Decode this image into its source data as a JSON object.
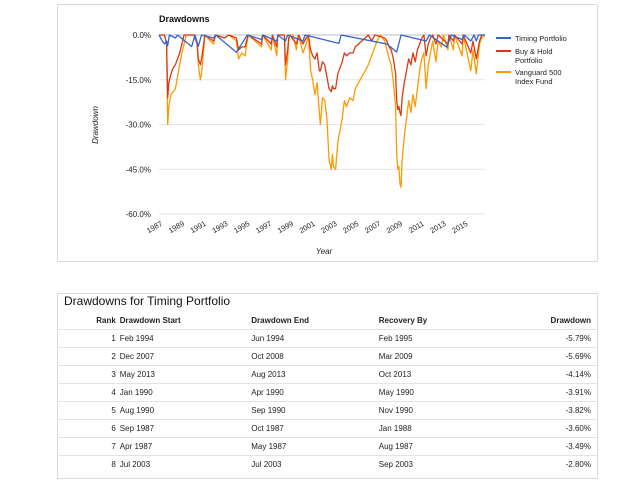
{
  "chart_data": {
    "type": "line",
    "title": "Drawdowns",
    "xlabel": "Year",
    "ylabel": "Drawdown",
    "xlim": [
      1987,
      2016.9
    ],
    "ylim": [
      -60,
      0
    ],
    "x_ticks": [
      "1987",
      "1989",
      "1991",
      "1993",
      "1995",
      "1997",
      "1999",
      "2001",
      "2003",
      "2005",
      "2007",
      "2009",
      "2011",
      "2013",
      "2015"
    ],
    "y_ticks": [
      "0.0%",
      "-15.0%",
      "-30.0%",
      "-45.0%",
      "-60.0%"
    ],
    "legend_position": "right",
    "grid": "horizontal",
    "series": [
      {
        "name": "Vanguard 500 Index Fund",
        "color": "#ff9900",
        "points": [
          [
            1987.0,
            0
          ],
          [
            1987.5,
            0
          ],
          [
            1987.7,
            -3
          ],
          [
            1987.8,
            -30
          ],
          [
            1987.9,
            -24
          ],
          [
            1988.1,
            -20
          ],
          [
            1988.3,
            -19
          ],
          [
            1988.5,
            -18
          ],
          [
            1988.7,
            -14
          ],
          [
            1988.9,
            -10
          ],
          [
            1989.1,
            -6
          ],
          [
            1989.3,
            -3
          ],
          [
            1989.5,
            0
          ],
          [
            1990.2,
            0
          ],
          [
            1990.5,
            -3
          ],
          [
            1990.6,
            -10
          ],
          [
            1990.8,
            -15
          ],
          [
            1990.9,
            -13
          ],
          [
            1991.1,
            -5
          ],
          [
            1991.2,
            0
          ],
          [
            1992.0,
            -3
          ],
          [
            1992.2,
            0
          ],
          [
            1993.0,
            -1
          ],
          [
            1993.4,
            0
          ],
          [
            1994.1,
            -2
          ],
          [
            1994.3,
            -8
          ],
          [
            1994.6,
            -6
          ],
          [
            1994.9,
            -7
          ],
          [
            1995.1,
            -2
          ],
          [
            1995.2,
            0
          ],
          [
            1996.4,
            -4
          ],
          [
            1996.5,
            0
          ],
          [
            1997.3,
            -5
          ],
          [
            1997.4,
            0
          ],
          [
            1997.8,
            -7
          ],
          [
            1997.9,
            0
          ],
          [
            1998.5,
            0
          ],
          [
            1998.6,
            -15
          ],
          [
            1998.8,
            -8
          ],
          [
            1998.9,
            -2
          ],
          [
            1999.0,
            0
          ],
          [
            1999.3,
            0
          ],
          [
            1999.6,
            -5
          ],
          [
            1999.8,
            0
          ],
          [
            2000.2,
            -6
          ],
          [
            2000.5,
            -3
          ],
          [
            2000.7,
            0
          ],
          [
            2000.9,
            -12
          ],
          [
            2001.1,
            -15
          ],
          [
            2001.3,
            -20
          ],
          [
            2001.5,
            -16
          ],
          [
            2001.7,
            -26
          ],
          [
            2001.8,
            -30
          ],
          [
            2002.0,
            -21
          ],
          [
            2002.2,
            -22
          ],
          [
            2002.4,
            -28
          ],
          [
            2002.6,
            -42
          ],
          [
            2002.8,
            -45
          ],
          [
            2002.9,
            -40
          ],
          [
            2003.0,
            -44
          ],
          [
            2003.2,
            -45
          ],
          [
            2003.4,
            -36
          ],
          [
            2003.6,
            -32
          ],
          [
            2003.8,
            -28
          ],
          [
            2004.0,
            -22
          ],
          [
            2004.2,
            -24
          ],
          [
            2004.5,
            -21
          ],
          [
            2004.8,
            -22
          ],
          [
            2005.0,
            -18
          ],
          [
            2005.3,
            -16
          ],
          [
            2005.6,
            -14
          ],
          [
            2005.9,
            -12
          ],
          [
            2006.2,
            -10
          ],
          [
            2006.5,
            -7
          ],
          [
            2006.8,
            -4
          ],
          [
            2007.0,
            -2
          ],
          [
            2007.3,
            0
          ],
          [
            2007.7,
            -2
          ],
          [
            2007.9,
            -5
          ],
          [
            2008.1,
            -8
          ],
          [
            2008.3,
            -10
          ],
          [
            2008.5,
            -16
          ],
          [
            2008.7,
            -24
          ],
          [
            2008.8,
            -40
          ],
          [
            2008.9,
            -45
          ],
          [
            2009.0,
            -44
          ],
          [
            2009.1,
            -50
          ],
          [
            2009.2,
            -51
          ],
          [
            2009.3,
            -42
          ],
          [
            2009.5,
            -34
          ],
          [
            2009.7,
            -28
          ],
          [
            2009.9,
            -22
          ],
          [
            2010.1,
            -26
          ],
          [
            2010.3,
            -20
          ],
          [
            2010.5,
            -24
          ],
          [
            2010.7,
            -18
          ],
          [
            2010.9,
            -12
          ],
          [
            2011.1,
            -8
          ],
          [
            2011.3,
            -6
          ],
          [
            2011.5,
            -18
          ],
          [
            2011.7,
            -10
          ],
          [
            2011.9,
            -6
          ],
          [
            2012.1,
            -2
          ],
          [
            2012.4,
            -9
          ],
          [
            2012.6,
            -2
          ],
          [
            2012.9,
            -4
          ],
          [
            2013.1,
            0
          ],
          [
            2013.5,
            -5
          ],
          [
            2013.6,
            0
          ],
          [
            2014.0,
            -5
          ],
          [
            2014.1,
            0
          ],
          [
            2014.8,
            -7
          ],
          [
            2014.9,
            0
          ],
          [
            2015.6,
            -12
          ],
          [
            2015.8,
            -5
          ],
          [
            2016.1,
            -13
          ],
          [
            2016.4,
            -3
          ],
          [
            2016.6,
            -1
          ],
          [
            2016.9,
            0
          ]
        ]
      },
      {
        "name": "Buy & Hold Portfolio",
        "color": "#dc3912",
        "points": [
          [
            1987.0,
            0
          ],
          [
            1987.5,
            0
          ],
          [
            1987.7,
            -3
          ],
          [
            1987.8,
            -21
          ],
          [
            1987.9,
            -16
          ],
          [
            1988.1,
            -13
          ],
          [
            1988.3,
            -11
          ],
          [
            1988.5,
            -10
          ],
          [
            1988.7,
            -8
          ],
          [
            1988.9,
            -6
          ],
          [
            1989.1,
            -3
          ],
          [
            1989.3,
            0
          ],
          [
            1990.2,
            0
          ],
          [
            1990.5,
            -3
          ],
          [
            1990.6,
            -8
          ],
          [
            1990.8,
            -10
          ],
          [
            1990.9,
            -8
          ],
          [
            1991.1,
            -3
          ],
          [
            1991.2,
            0
          ],
          [
            1992.0,
            -2
          ],
          [
            1992.2,
            0
          ],
          [
            1993.0,
            -1
          ],
          [
            1993.4,
            0
          ],
          [
            1994.1,
            -1
          ],
          [
            1994.3,
            -5
          ],
          [
            1994.6,
            -4
          ],
          [
            1994.9,
            -4
          ],
          [
            1995.1,
            -1
          ],
          [
            1995.2,
            0
          ],
          [
            1996.4,
            -3
          ],
          [
            1996.5,
            0
          ],
          [
            1997.3,
            -3
          ],
          [
            1997.4,
            0
          ],
          [
            1997.8,
            -4
          ],
          [
            1997.9,
            0
          ],
          [
            1998.5,
            0
          ],
          [
            1998.6,
            -10
          ],
          [
            1998.8,
            -5
          ],
          [
            1998.9,
            -1
          ],
          [
            1999.0,
            0
          ],
          [
            1999.6,
            -3
          ],
          [
            1999.8,
            0
          ],
          [
            2000.2,
            -3
          ],
          [
            2000.5,
            -1
          ],
          [
            2000.7,
            0
          ],
          [
            2000.9,
            -5
          ],
          [
            2001.1,
            -7
          ],
          [
            2001.3,
            -8
          ],
          [
            2001.5,
            -6
          ],
          [
            2001.7,
            -12
          ],
          [
            2001.8,
            -12
          ],
          [
            2002.0,
            -9
          ],
          [
            2002.2,
            -10
          ],
          [
            2002.4,
            -14
          ],
          [
            2002.6,
            -18
          ],
          [
            2002.8,
            -19
          ],
          [
            2002.9,
            -17
          ],
          [
            2003.0,
            -18
          ],
          [
            2003.2,
            -18
          ],
          [
            2003.4,
            -13
          ],
          [
            2003.6,
            -11
          ],
          [
            2003.8,
            -9
          ],
          [
            2004.0,
            -6
          ],
          [
            2004.2,
            -7
          ],
          [
            2004.5,
            -6
          ],
          [
            2004.8,
            -6
          ],
          [
            2005.0,
            -4
          ],
          [
            2005.3,
            -3
          ],
          [
            2005.6,
            -2
          ],
          [
            2005.9,
            -1
          ],
          [
            2006.2,
            0
          ],
          [
            2006.5,
            -2
          ],
          [
            2006.8,
            0
          ],
          [
            2007.7,
            -1
          ],
          [
            2007.9,
            -2
          ],
          [
            2008.1,
            -4
          ],
          [
            2008.3,
            -5
          ],
          [
            2008.5,
            -8
          ],
          [
            2008.7,
            -13
          ],
          [
            2008.8,
            -22
          ],
          [
            2008.9,
            -25
          ],
          [
            2009.0,
            -24
          ],
          [
            2009.1,
            -26
          ],
          [
            2009.2,
            -27
          ],
          [
            2009.3,
            -21
          ],
          [
            2009.5,
            -16
          ],
          [
            2009.7,
            -12
          ],
          [
            2009.9,
            -8
          ],
          [
            2010.1,
            -10
          ],
          [
            2010.3,
            -6
          ],
          [
            2010.5,
            -9
          ],
          [
            2010.7,
            -5
          ],
          [
            2010.9,
            -3
          ],
          [
            2011.1,
            -1
          ],
          [
            2011.3,
            0
          ],
          [
            2011.5,
            -7
          ],
          [
            2011.7,
            -3
          ],
          [
            2011.9,
            -1
          ],
          [
            2012.1,
            0
          ],
          [
            2012.4,
            -3
          ],
          [
            2012.6,
            0
          ],
          [
            2013.5,
            -3
          ],
          [
            2013.6,
            0
          ],
          [
            2014.0,
            -2
          ],
          [
            2014.1,
            0
          ],
          [
            2014.8,
            -3
          ],
          [
            2014.9,
            0
          ],
          [
            2015.6,
            -6
          ],
          [
            2015.8,
            -2
          ],
          [
            2016.1,
            -8
          ],
          [
            2016.4,
            -2
          ],
          [
            2016.6,
            0
          ],
          [
            2016.9,
            0
          ]
        ]
      },
      {
        "name": "Timing Portfolio",
        "color": "#3366cc",
        "points": [
          [
            1987.0,
            0
          ],
          [
            1987.3,
            -2
          ],
          [
            1987.5,
            -3
          ],
          [
            1987.7,
            -2
          ],
          [
            1987.8,
            -3.6
          ],
          [
            1987.95,
            0
          ],
          [
            1988.5,
            -1
          ],
          [
            1988.7,
            0
          ],
          [
            1990.0,
            -3.9
          ],
          [
            1990.3,
            0
          ],
          [
            1990.6,
            -3.8
          ],
          [
            1990.9,
            0
          ],
          [
            1992.0,
            -1
          ],
          [
            1992.2,
            0
          ],
          [
            1994.1,
            -5.8
          ],
          [
            1995.1,
            0
          ],
          [
            1996.4,
            -1.5
          ],
          [
            1996.5,
            0
          ],
          [
            1997.8,
            -2
          ],
          [
            1997.9,
            0
          ],
          [
            1998.6,
            -2
          ],
          [
            1998.8,
            0
          ],
          [
            2000.2,
            -2
          ],
          [
            2000.4,
            0
          ],
          [
            2003.5,
            -2.8
          ],
          [
            2003.7,
            0
          ],
          [
            2007.9,
            -3
          ],
          [
            2008.8,
            -5.7
          ],
          [
            2009.2,
            0
          ],
          [
            2011.5,
            -2
          ],
          [
            2011.8,
            0
          ],
          [
            2013.4,
            -4.1
          ],
          [
            2013.8,
            0
          ],
          [
            2014.8,
            -1.5
          ],
          [
            2015.0,
            0
          ],
          [
            2015.6,
            -2
          ],
          [
            2015.9,
            0
          ],
          [
            2016.1,
            -2
          ],
          [
            2016.3,
            0
          ],
          [
            2016.9,
            0
          ]
        ]
      }
    ]
  },
  "legend": {
    "timing": [
      "Timing Portfolio"
    ],
    "buyhold": [
      "Buy & Hold",
      "Portfolio"
    ],
    "vanguard": [
      "Vanguard 500",
      "Index Fund"
    ]
  },
  "table": {
    "title": "Drawdowns for Timing Portfolio",
    "columns": [
      "Rank",
      "Drawdown Start",
      "Drawdown End",
      "Recovery By",
      "Drawdown"
    ],
    "rows": [
      [
        "1",
        "Feb 1994",
        "Jun 1994",
        "Feb 1995",
        "-5.79%"
      ],
      [
        "2",
        "Dec 2007",
        "Oct 2008",
        "Mar 2009",
        "-5.69%"
      ],
      [
        "3",
        "May 2013",
        "Aug 2013",
        "Oct 2013",
        "-4.14%"
      ],
      [
        "4",
        "Jan 1990",
        "Apr 1990",
        "May 1990",
        "-3.91%"
      ],
      [
        "5",
        "Aug 1990",
        "Sep 1990",
        "Nov 1990",
        "-3.82%"
      ],
      [
        "6",
        "Sep 1987",
        "Oct 1987",
        "Jan 1988",
        "-3.60%"
      ],
      [
        "7",
        "Apr 1987",
        "May 1987",
        "Aug 1987",
        "-3.49%"
      ],
      [
        "8",
        "Jul 2003",
        "Jul 2003",
        "Sep 2003",
        "-2.80%"
      ]
    ]
  }
}
